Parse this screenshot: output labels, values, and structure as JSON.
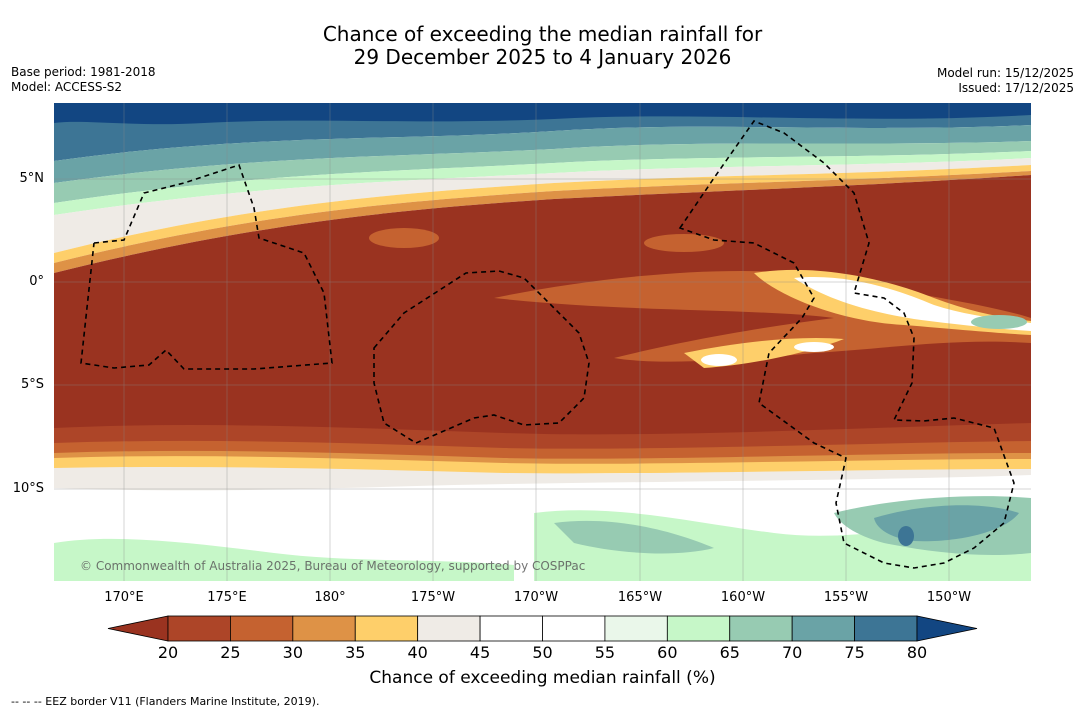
{
  "title": {
    "line1": "Chance of exceeding the median rainfall for",
    "line2": "29 December 2025 to 4 January 2026"
  },
  "meta": {
    "base_period": "Base period: 1981-2018",
    "model": "Model: ACCESS-S2",
    "model_run": "Model run: 15/12/2025",
    "issued": "Issued: 17/12/2025"
  },
  "map": {
    "longitude_labels": [
      "170°E",
      "175°E",
      "180°",
      "175°W",
      "170°W",
      "165°W",
      "160°W",
      "155°W",
      "150°W"
    ],
    "latitude_labels": [
      "5°N",
      "0°",
      "5°S",
      "10°S"
    ],
    "copyright": "© Commonwealth of Australia 2025, Bureau of Meteorology, supported by COSPPac",
    "colors": {
      "ocean_high": "#123f76",
      "land_outline": "#000000",
      "eez_border": "#000000"
    }
  },
  "colorbar": {
    "ticks": [
      "20",
      "25",
      "30",
      "35",
      "40",
      "45",
      "50",
      "55",
      "60",
      "65",
      "70",
      "75",
      "80"
    ],
    "colors": [
      "#9a3320",
      "#ad4528",
      "#c56230",
      "#de9246",
      "#fecf6a",
      "#efebe6",
      "#ffffff",
      "#ffffff",
      "#eaf7ea",
      "#c6f7c8",
      "#97cbb2",
      "#6aa3a6",
      "#3d7595",
      "#124682"
    ],
    "label": "Chance of exceeding median rainfall (%)"
  },
  "legend": {
    "eez": "-- -- -- EEZ border V11 (Flanders Marine Institute, 2019)."
  }
}
